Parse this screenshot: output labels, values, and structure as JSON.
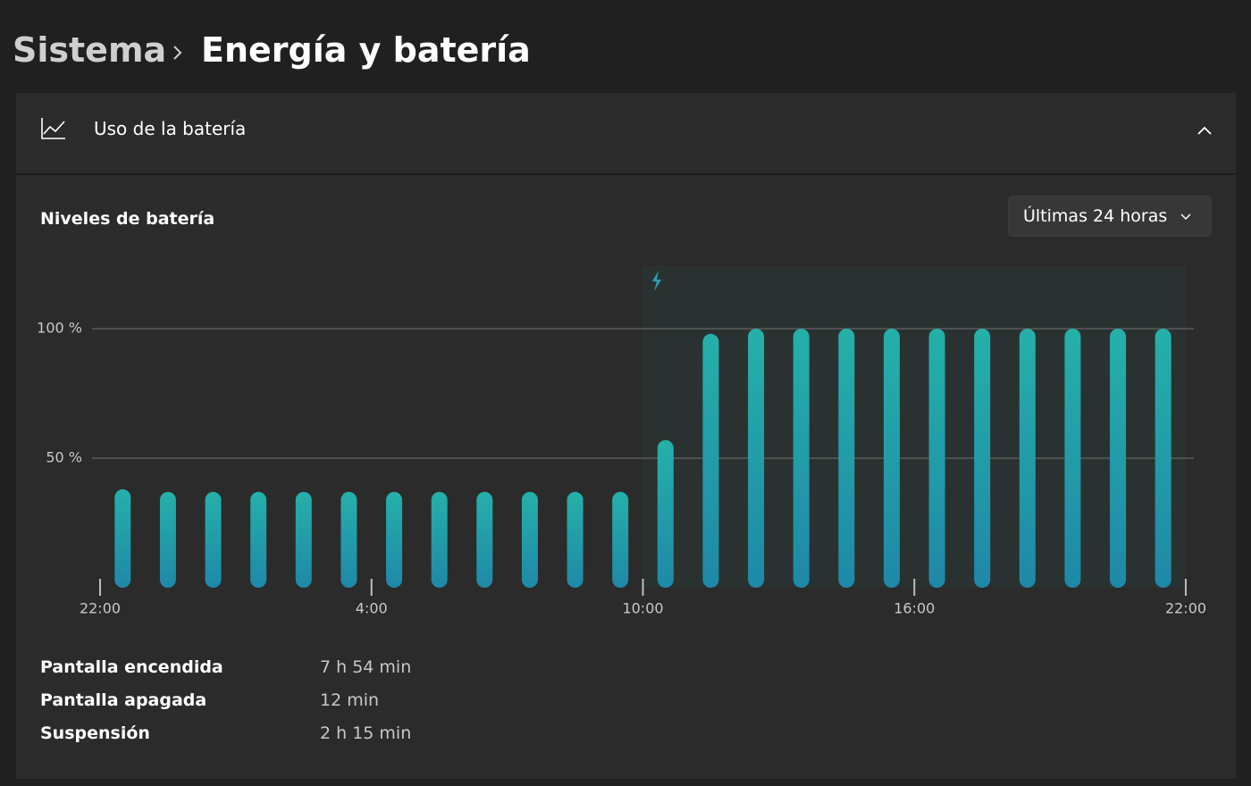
{
  "header": {
    "parent": "Sistema",
    "title": "Energía y batería"
  },
  "section": {
    "title": "Uso de la batería"
  },
  "chart_data": {
    "type": "bar",
    "title": "Niveles de batería",
    "range_selector": "Últimas 24 horas",
    "categories": [
      null,
      null,
      null,
      null,
      null,
      null,
      null,
      null,
      null,
      null,
      null,
      null,
      null,
      null,
      null,
      null,
      null,
      null,
      null,
      null,
      null,
      null,
      null,
      null
    ],
    "values": [
      38,
      37,
      37,
      37,
      37,
      37,
      37,
      37,
      37,
      37,
      37,
      37,
      57,
      98,
      100,
      100,
      100,
      100,
      100,
      100,
      100,
      100,
      100,
      100
    ],
    "color": "#25b0a9",
    "ylim": [
      0,
      100
    ],
    "yticks": [
      {
        "value": 50,
        "label": "50 %"
      },
      {
        "value": 100,
        "label": "100 %"
      }
    ],
    "xticks": [
      "22:00",
      "4:00",
      "10:00",
      "16:00",
      "22:00"
    ],
    "grid": true
  },
  "stats": [
    {
      "label": "Pantalla encendida",
      "value": "7 h 54 min"
    },
    {
      "label": "Pantalla apagada",
      "value": "12 min"
    },
    {
      "label": "Suspensión",
      "value": "2 h 15 min"
    }
  ]
}
